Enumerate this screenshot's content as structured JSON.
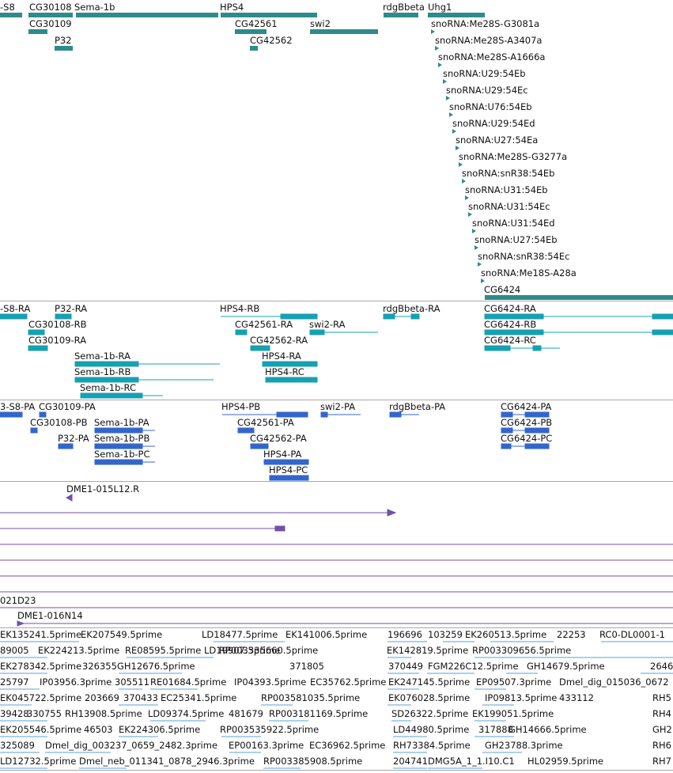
{
  "colors": {
    "gene": "#2e8b8b",
    "transcript": "#17a0b2",
    "polypeptide": "#3366cc",
    "clone": "#7050a8",
    "est": "#5aa0d8",
    "divider": "#a8a8a8"
  },
  "genes": {
    "row1": [
      "-S8",
      "CG30108",
      "Sema-1b",
      "HPS4",
      "rdgBbeta",
      "Uhg1"
    ],
    "row2": [
      "CG30109",
      "CG42561",
      "swi2"
    ],
    "row3": [
      "P32",
      "CG42562"
    ],
    "snornas": [
      "snoRNA:Me28S-G3081a",
      "snoRNA:Me28S-A3407a",
      "snoRNA:Me28S-A1666a",
      "snoRNA:U29:54Eb",
      "snoRNA:U29:54Ec",
      "snoRNA:U76:54Eb",
      "snoRNA:U29:54Ed",
      "snoRNA:U27:54Ea",
      "snoRNA:Me28S-G3277a",
      "snoRNA:snR38:54Eb",
      "snoRNA:U31:54Eb",
      "snoRNA:U31:54Ec",
      "snoRNA:U31:54Ed",
      "snoRNA:U27:54Eb",
      "snoRNA:snR38:54Ec",
      "snoRNA:Me18S-A28a"
    ],
    "cg6424": "CG6424"
  },
  "transcripts": {
    "t1": "-S8-RA",
    "t2": "P32-RA",
    "t3": "HPS4-RB",
    "t4": "rdgBbeta-RA",
    "t5": "CG6424-RA",
    "t6": "CG30108-RB",
    "t7": "CG42561-RA",
    "t8": "swi2-RA",
    "t9": "CG6424-RB",
    "t10": "CG30109-RA",
    "t11": "CG42562-RA",
    "t12": "CG6424-RC",
    "t13": "Sema-1b-RA",
    "t14": "HPS4-RA",
    "t15": "Sema-1b-RB",
    "t16": "HPS4-RC",
    "t17": "Sema-1b-RC"
  },
  "polypeptides": {
    "p1": "3-S8-PA",
    "p2": "CG30109-PA",
    "p3": "HPS4-PB",
    "p4": "swi2-PA",
    "p5": "rdgBbeta-PA",
    "p6": "CG6424-PA",
    "p7": "CG30108-PB",
    "p8": "Sema-1b-PA",
    "p9": "CG42561-PA",
    "p10": "CG6424-PB",
    "p11": "P32-PA",
    "p12": "Sema-1b-PB",
    "p13": "CG42562-PA",
    "p14": "CG6424-PC",
    "p15": "Sema-1b-PC",
    "p16": "HPS4-PA",
    "p17": "HPS4-PC"
  },
  "clones": {
    "c1": "DME1-015L12.R",
    "c2": "021D23",
    "c3": "DME1-016N14"
  },
  "ests": {
    "r1": [
      "EK135241.5prime",
      "EK207549.5prime",
      "LD18477.5prime",
      "EK141006.5prime",
      "196696",
      "103259",
      "EK260513.5prime",
      "22253",
      "RC0-DL0001-1"
    ],
    "r2": [
      "89005",
      "EK224213.5prime",
      "RE08595.5prime",
      "LD19907.5prime",
      "RP003335660.5prime",
      "EK142819.5prime",
      "RP003309656.5prime"
    ],
    "r3": [
      "EK278342.5prime",
      "326355",
      "GH12676.5prime",
      "371805",
      "370449",
      "FGM226C12.5prime",
      "GH14679.5prime",
      "2646"
    ],
    "r4": [
      "25797",
      "IP03956.3prime",
      "305511",
      "RE01684.5prime",
      "IP04393.5prime",
      "EC35762.5prime",
      "EK247145.5prime",
      "EP09507.3prime",
      "Dmel_dig_015036_0672"
    ],
    "r5": [
      "EK045722.5prime",
      "203669",
      "370433",
      "EC25341.5prime",
      "RP003581035.5prime",
      "EK076028.5prime",
      "IP09813.5prime",
      "433112",
      "RH5"
    ],
    "r6": [
      "39428",
      "330755",
      "RH13908.5prime",
      "LD09374.5prime",
      "481679",
      "RP003181169.5prime",
      "SD26322.5prime",
      "EK199051.5prime",
      "RH4"
    ],
    "r7": [
      "EK205546.5prime",
      "46503",
      "EK224306.5prime",
      "RP003535922.5prime",
      "LD44980.5prime",
      "317888",
      "GH14666.5prime",
      "GH2"
    ],
    "r8": [
      "325089",
      "Dmel_dig_003237_0659_2482.3prime",
      "EP00163.3prime",
      "EC36962.5prime",
      "RH73384.5prime",
      "GH23788.3prime",
      "RH6"
    ],
    "r9": [
      "LD12732.5prime",
      "Dmel_neb_011341_0878_2946.3prime",
      "RP003385908.5prime",
      "204741",
      "DMG5A_1_1.I10.C1",
      "HL02959.5prime",
      "RH7"
    ]
  }
}
